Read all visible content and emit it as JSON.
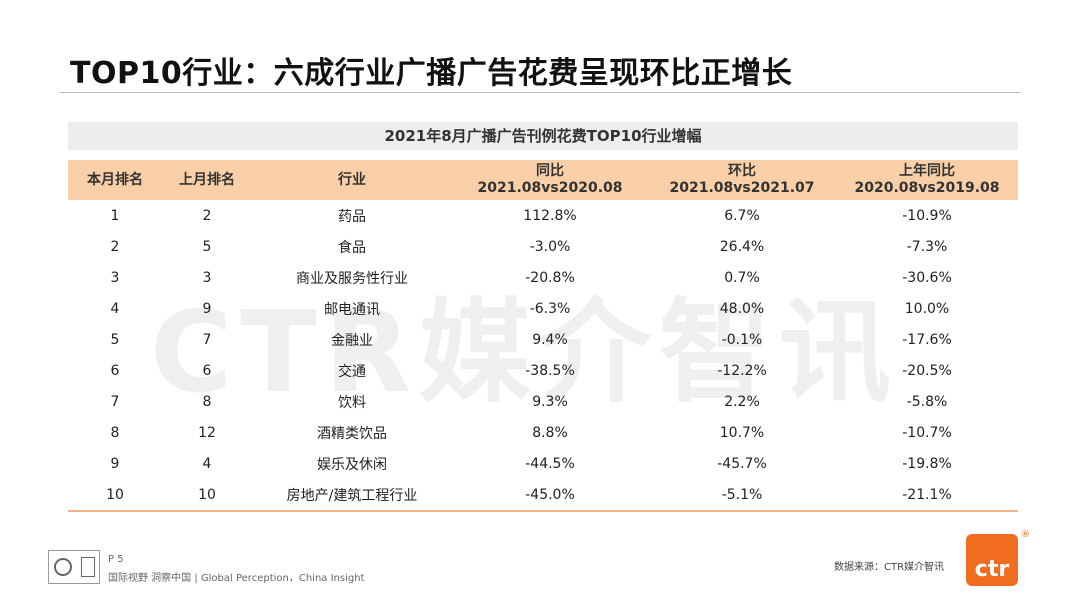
{
  "page_title": "TOP10行业：六成行业广播广告花费呈现环比正增长",
  "watermark": "CTR媒介智讯",
  "table": {
    "caption": "2021年8月广播广告刊例花费TOP10行业增幅",
    "headers": [
      {
        "line1": "本月排名",
        "line2": ""
      },
      {
        "line1": "上月排名",
        "line2": ""
      },
      {
        "line1": "行业",
        "line2": ""
      },
      {
        "line1": "同比",
        "line2": "2021.08vs2020.08"
      },
      {
        "line1": "环比",
        "line2": "2021.08vs2021.07"
      },
      {
        "line1": "上年同比",
        "line2": "2020.08vs2019.08"
      }
    ],
    "rows": [
      [
        "1",
        "2",
        "药品",
        "112.8%",
        "6.7%",
        "-10.9%"
      ],
      [
        "2",
        "5",
        "食品",
        "-3.0%",
        "26.4%",
        "-7.3%"
      ],
      [
        "3",
        "3",
        "商业及服务性行业",
        "-20.8%",
        "0.7%",
        "-30.6%"
      ],
      [
        "4",
        "9",
        "邮电通讯",
        "-6.3%",
        "48.0%",
        "10.0%"
      ],
      [
        "5",
        "7",
        "金融业",
        "9.4%",
        "-0.1%",
        "-17.6%"
      ],
      [
        "6",
        "6",
        "交通",
        "-38.5%",
        "-12.2%",
        "-20.5%"
      ],
      [
        "7",
        "8",
        "饮料",
        "9.3%",
        "2.2%",
        "-5.8%"
      ],
      [
        "8",
        "12",
        "酒精类饮品",
        "8.8%",
        "10.7%",
        "-10.7%"
      ],
      [
        "9",
        "4",
        "娱乐及休闲",
        "-44.5%",
        "-45.7%",
        "-19.8%"
      ],
      [
        "10",
        "10",
        "房地产/建筑工程行业",
        "-45.0%",
        "-5.1%",
        "-21.1%"
      ]
    ]
  },
  "footer": {
    "page_number": "P 5",
    "slogan": "国际视野  洞察中国 | Global Perception，China Insight",
    "source": "数据来源：CTR媒介智讯",
    "logo_text": "ctr",
    "logo_mark": "®"
  },
  "colors": {
    "header_bg": "#f8cfa7",
    "caption_bg": "#ededed",
    "brand_orange": "#f06d1f"
  }
}
